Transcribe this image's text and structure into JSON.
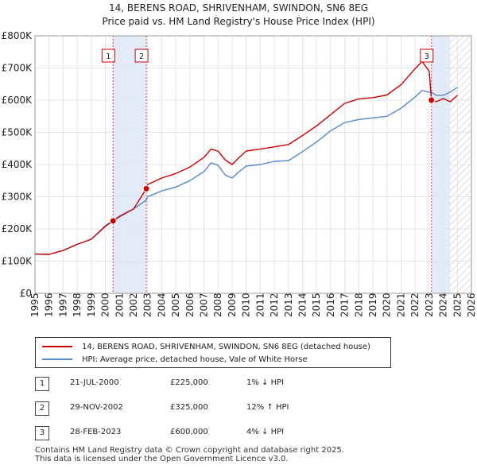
{
  "title_line1": "14, BERENS ROAD, SHRIVENHAM, SWINDON, SN6 8EG",
  "title_line2": "Price paid vs. HM Land Registry's House Price Index (HPI)",
  "chart_data": {
    "type": "line",
    "xlim": [
      1995,
      2026
    ],
    "ylim": [
      0,
      800000
    ],
    "x_ticks": [
      1995,
      1996,
      1997,
      1998,
      1999,
      2000,
      2001,
      2002,
      2003,
      2004,
      2005,
      2006,
      2007,
      2008,
      2009,
      2010,
      2011,
      2012,
      2013,
      2014,
      2015,
      2016,
      2017,
      2018,
      2019,
      2020,
      2021,
      2022,
      2023,
      2024,
      2025,
      2026
    ],
    "y_ticks": [
      {
        "value": 0,
        "label": "£0"
      },
      {
        "value": 100000,
        "label": "£100K"
      },
      {
        "value": 200000,
        "label": "£200K"
      },
      {
        "value": 300000,
        "label": "£300K"
      },
      {
        "value": 400000,
        "label": "£400K"
      },
      {
        "value": 500000,
        "label": "£500K"
      },
      {
        "value": 600000,
        "label": "£600K"
      },
      {
        "value": 700000,
        "label": "£700K"
      },
      {
        "value": 800000,
        "label": "£800K"
      }
    ],
    "series": [
      {
        "name": "14, BERENS ROAD, SHRIVENHAM, SWINDON, SN6 8EG (detached house)",
        "color": "#cc0000",
        "x": [
          1995,
          1996,
          1997,
          1998,
          1999,
          2000,
          2000.55,
          2001,
          2002,
          2002.91,
          2003,
          2004,
          2005,
          2006,
          2007,
          2007.5,
          2008,
          2008.5,
          2009,
          2009.5,
          2010,
          2011,
          2012,
          2013,
          2014,
          2015,
          2016,
          2017,
          2018,
          2019,
          2020,
          2021,
          2022,
          2022.5,
          2023,
          2023.16,
          2023.5,
          2024,
          2024.5,
          2025
        ],
        "values": [
          122000,
          121000,
          133000,
          152000,
          168000,
          208000,
          225000,
          238000,
          262000,
          325000,
          338000,
          358000,
          372000,
          392000,
          422000,
          448000,
          442000,
          415000,
          400000,
          422000,
          442000,
          448000,
          455000,
          462000,
          490000,
          520000,
          555000,
          590000,
          604000,
          608000,
          616000,
          648000,
          698000,
          720000,
          690000,
          600000,
          595000,
          605000,
          595000,
          615000
        ],
        "sale_points": [
          {
            "x": 2000.55,
            "value": 225000
          },
          {
            "x": 2002.91,
            "value": 325000
          },
          {
            "x": 2023.16,
            "value": 600000
          }
        ]
      },
      {
        "name": "HPI: Average price, detached house, Vale of White Horse",
        "color": "#5588cc",
        "x": [
          1995,
          1996,
          1997,
          1998,
          1999,
          2000,
          2000.55,
          2001,
          2002,
          2002.91,
          2003,
          2004,
          2005,
          2006,
          2007,
          2007.5,
          2008,
          2008.5,
          2009,
          2009.5,
          2010,
          2011,
          2012,
          2013,
          2014,
          2015,
          2016,
          2017,
          2018,
          2019,
          2020,
          2021,
          2022,
          2022.5,
          2023,
          2023.16,
          2023.5,
          2024,
          2024.5,
          2025
        ],
        "values": [
          122000,
          121000,
          133000,
          152000,
          168000,
          210000,
          227000,
          240000,
          262000,
          290000,
          300000,
          318000,
          330000,
          350000,
          378000,
          405000,
          398000,
          368000,
          358000,
          378000,
          395000,
          400000,
          410000,
          412000,
          440000,
          470000,
          505000,
          530000,
          540000,
          545000,
          550000,
          575000,
          610000,
          630000,
          625000,
          625000,
          615000,
          615000,
          625000,
          640000
        ]
      }
    ],
    "markers": [
      {
        "id": "1",
        "x": 2000.55
      },
      {
        "id": "2",
        "x": 2002.91
      },
      {
        "id": "3",
        "x": 2023.16
      }
    ],
    "shaded_ranges": [
      [
        2000.55,
        2002.91
      ],
      [
        2023.16,
        2024.5
      ]
    ],
    "hatched_range": [
      2024.5,
      2026
    ]
  },
  "legend": {
    "property": "14, BERENS ROAD, SHRIVENHAM, SWINDON, SN6 8EG (detached house)",
    "hpi": "HPI: Average price, detached house, Vale of White Horse"
  },
  "transactions": [
    {
      "num": "1",
      "date": "21-JUL-2000",
      "price": "£225,000",
      "hpi": "1% ↓ HPI"
    },
    {
      "num": "2",
      "date": "29-NOV-2002",
      "price": "£325,000",
      "hpi": "12% ↑ HPI"
    },
    {
      "num": "3",
      "date": "28-FEB-2023",
      "price": "£600,000",
      "hpi": "4% ↓ HPI"
    }
  ],
  "footer": {
    "line1": "Contains HM Land Registry data © Crown copyright and database right 2025.",
    "line2": "This data is licensed under the Open Government Licence v3.0."
  }
}
